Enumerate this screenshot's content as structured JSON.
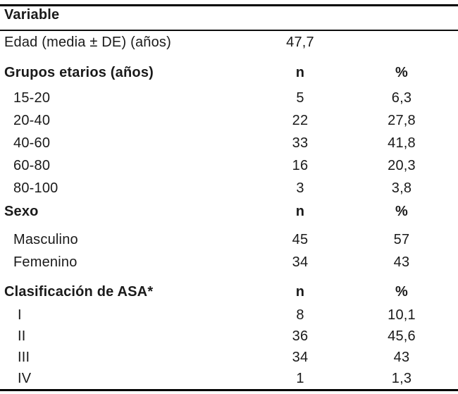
{
  "table": {
    "title_header": "Variable",
    "edad": {
      "label": "Edad (media ± DE) (años)",
      "value": "47,7"
    },
    "sections": [
      {
        "title": "Grupos etarios (años)",
        "col_n": "n",
        "col_pct": "%",
        "rows": [
          {
            "label": "15-20",
            "n": "5",
            "pct": "6,3"
          },
          {
            "label": "20-40",
            "n": "22",
            "pct": "27,8"
          },
          {
            "label": "40-60",
            "n": "33",
            "pct": "41,8"
          },
          {
            "label": "60-80",
            "n": "16",
            "pct": "20,3"
          },
          {
            "label": "80-100",
            "n": "3",
            "pct": "3,8"
          }
        ]
      },
      {
        "title": "Sexo",
        "col_n": "n",
        "col_pct": "%",
        "rows": [
          {
            "label": "Masculino",
            "n": "45",
            "pct": "57"
          },
          {
            "label": "Femenino",
            "n": "34",
            "pct": "43"
          }
        ]
      },
      {
        "title": "Clasificación de ASA*",
        "col_n": "n",
        "col_pct": "%",
        "rows": [
          {
            "label": "I",
            "n": "8",
            "pct": "10,1"
          },
          {
            "label": "II",
            "n": "36",
            "pct": "45,6"
          },
          {
            "label": "III",
            "n": "34",
            "pct": "43"
          },
          {
            "label": "IV",
            "n": "1",
            "pct": "1,3"
          }
        ]
      }
    ],
    "colors": {
      "text": "#1a1a1a",
      "rule": "#000000",
      "background": "#ffffff"
    }
  }
}
